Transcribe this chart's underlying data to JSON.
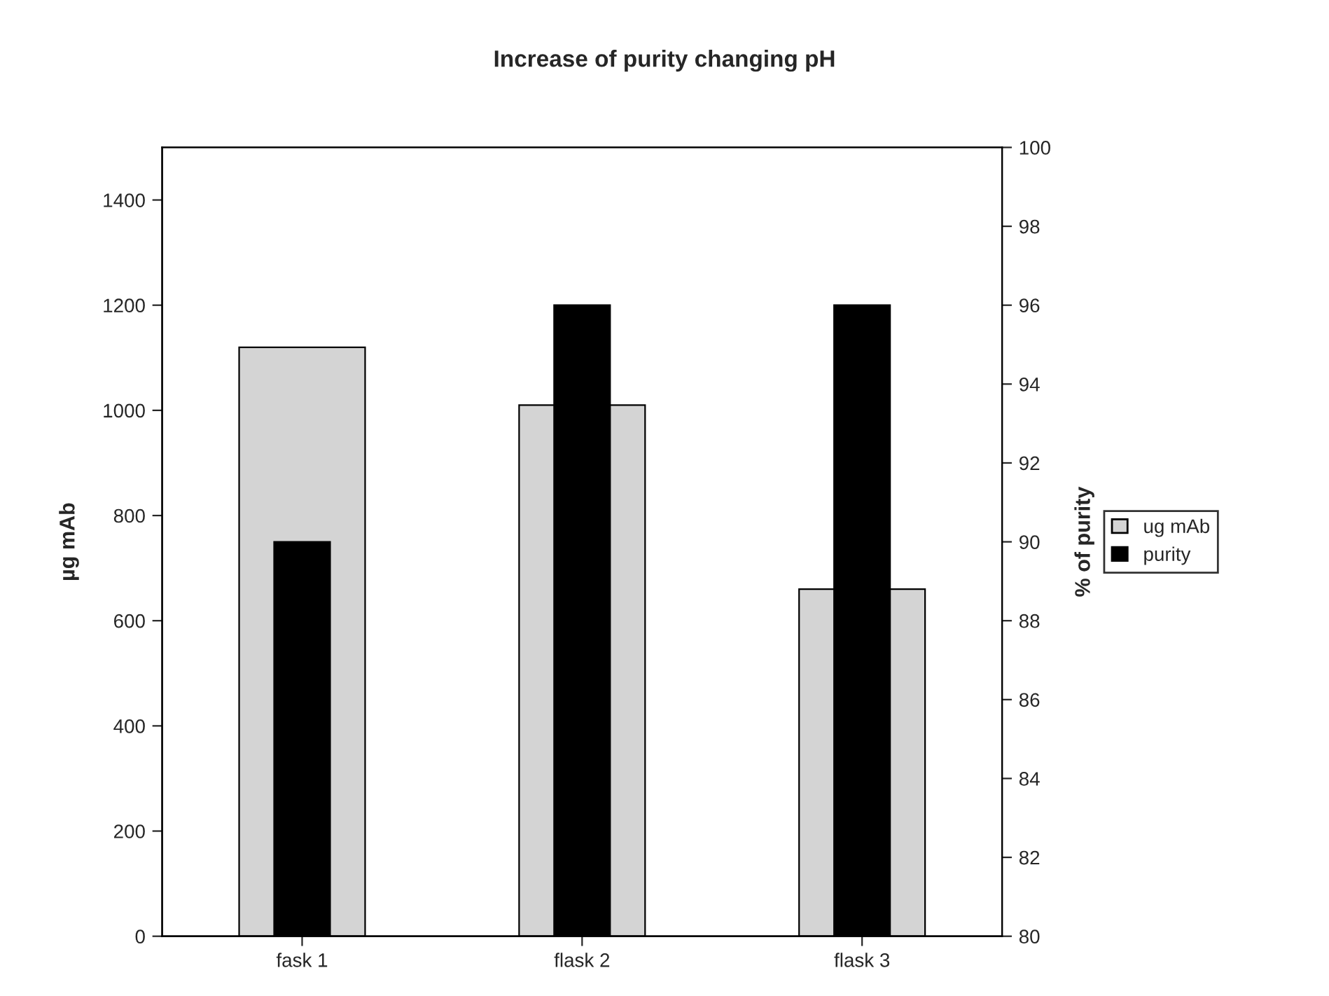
{
  "chart_data": {
    "type": "bar",
    "title": "Increase of purity changing pH",
    "categories": [
      "fask 1",
      "flask 2",
      "flask 3"
    ],
    "series": [
      {
        "name": "ug mAb",
        "color": "#d4d4d4",
        "values": [
          1120,
          1010,
          660
        ]
      },
      {
        "name": "purity",
        "color": "#000000",
        "values": [
          90,
          96,
          96
        ],
        "axis": "y2"
      }
    ],
    "ylabel": "µg mAb",
    "y2label": "% of purity",
    "ylim": [
      0,
      1500
    ],
    "yticks": [
      0,
      200,
      400,
      600,
      800,
      1000,
      1200,
      1400
    ],
    "y2lim": [
      80,
      100
    ],
    "y2ticks": [
      80,
      82,
      84,
      86,
      88,
      90,
      92,
      94,
      96,
      98,
      100
    ],
    "legend": "right",
    "grid": false
  }
}
